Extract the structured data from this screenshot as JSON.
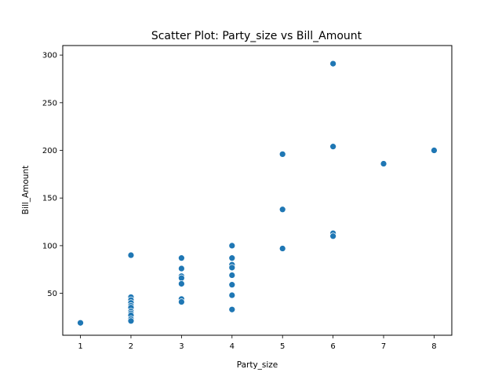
{
  "chart_data": {
    "type": "scatter",
    "title": "Scatter Plot: Party_size vs Bill_Amount",
    "xlabel": "Party_size",
    "ylabel": "Bill_Amount",
    "xlim": [
      0.65,
      8.35
    ],
    "ylim": [
      6,
      310
    ],
    "xticks": [
      1,
      2,
      3,
      4,
      5,
      6,
      7,
      8
    ],
    "yticks": [
      50,
      100,
      150,
      200,
      250,
      300
    ],
    "grid": false,
    "legend": "none",
    "series": [
      {
        "color": "#1f77b4",
        "points": [
          {
            "x": 1,
            "y": 19
          },
          {
            "x": 2,
            "y": 90
          },
          {
            "x": 2,
            "y": 46
          },
          {
            "x": 2,
            "y": 43
          },
          {
            "x": 2,
            "y": 40
          },
          {
            "x": 2,
            "y": 37
          },
          {
            "x": 2,
            "y": 35
          },
          {
            "x": 2,
            "y": 31
          },
          {
            "x": 2,
            "y": 29
          },
          {
            "x": 2,
            "y": 27
          },
          {
            "x": 2,
            "y": 23
          },
          {
            "x": 2,
            "y": 21
          },
          {
            "x": 3,
            "y": 87
          },
          {
            "x": 3,
            "y": 76
          },
          {
            "x": 3,
            "y": 68
          },
          {
            "x": 3,
            "y": 66
          },
          {
            "x": 3,
            "y": 60
          },
          {
            "x": 3,
            "y": 44
          },
          {
            "x": 3,
            "y": 41
          },
          {
            "x": 4,
            "y": 100
          },
          {
            "x": 4,
            "y": 87
          },
          {
            "x": 4,
            "y": 80
          },
          {
            "x": 4,
            "y": 77
          },
          {
            "x": 4,
            "y": 69
          },
          {
            "x": 4,
            "y": 59
          },
          {
            "x": 4,
            "y": 48
          },
          {
            "x": 4,
            "y": 33
          },
          {
            "x": 5,
            "y": 196
          },
          {
            "x": 5,
            "y": 138
          },
          {
            "x": 5,
            "y": 97
          },
          {
            "x": 6,
            "y": 291
          },
          {
            "x": 6,
            "y": 204
          },
          {
            "x": 6,
            "y": 113
          },
          {
            "x": 6,
            "y": 110
          },
          {
            "x": 7,
            "y": 186
          },
          {
            "x": 8,
            "y": 200
          }
        ]
      }
    ]
  }
}
